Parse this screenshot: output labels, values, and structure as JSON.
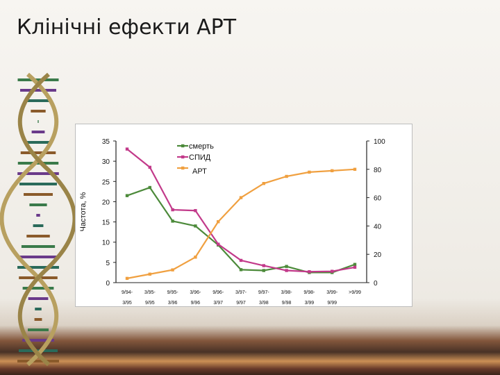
{
  "slide": {
    "title": "Клінічні ефекти АРТ"
  },
  "chart_data": {
    "type": "line",
    "ylabel": "Частота, %",
    "ylim_left": [
      0,
      35
    ],
    "yticks_left": [
      "0",
      "5",
      "10",
      "15",
      "20",
      "25",
      "30",
      "35"
    ],
    "ylim_right": [
      0,
      100
    ],
    "yticks_right": [
      "0",
      "20",
      "40",
      "60",
      "80",
      "100"
    ],
    "categories": [
      [
        "9/94-",
        "3/95"
      ],
      [
        "3/95-",
        "9/95"
      ],
      [
        "9/95-",
        "3/96"
      ],
      [
        "3/96-",
        "9/96"
      ],
      [
        "9/96-",
        "3/97"
      ],
      [
        "3/97-",
        "9/97"
      ],
      [
        "9/97-",
        "3/98"
      ],
      [
        "3/98-",
        "9/98"
      ],
      [
        "9/98-",
        "3/99"
      ],
      [
        "3/99-",
        "9/99"
      ],
      [
        ">9/99",
        ""
      ]
    ],
    "legend_position": "top-left",
    "series": [
      {
        "name": "смерть",
        "axis": "left",
        "color": "#4c8a3a",
        "values": [
          21.5,
          23.5,
          15.2,
          14.0,
          9.3,
          3.2,
          3.0,
          4.0,
          2.5,
          2.5,
          4.5
        ]
      },
      {
        "name": "СПИД",
        "axis": "left",
        "color": "#c23a8a",
        "values": [
          33.0,
          28.5,
          18.0,
          17.8,
          9.5,
          5.5,
          4.2,
          3.0,
          2.7,
          2.8,
          3.8
        ]
      },
      {
        "name": "АРТ",
        "axis": "right",
        "color": "#f0a040",
        "values": [
          3,
          6,
          9,
          18,
          43,
          60,
          70,
          75,
          78,
          79,
          80
        ]
      }
    ]
  }
}
